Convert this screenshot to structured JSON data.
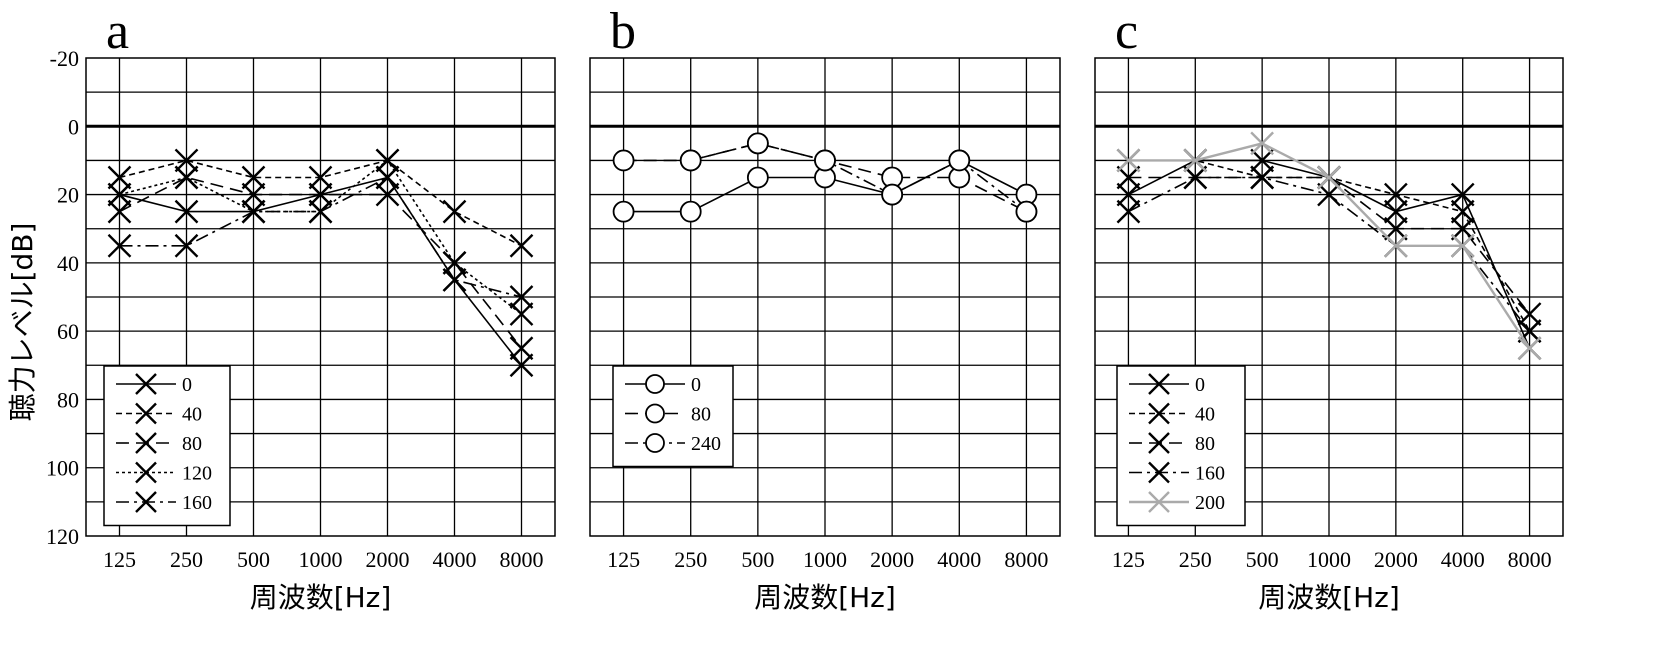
{
  "ylabel": "聴力レベル[dB]",
  "chart_data": [
    {
      "type": "line",
      "panel": "a",
      "xlabel": "周波数[Hz]",
      "ylabel": "聴力レベル[dB]",
      "categories": [
        "125",
        "250",
        "500",
        "1000",
        "2000",
        "4000",
        "8000"
      ],
      "yticks": [
        "-20",
        "0",
        "20",
        "40",
        "60",
        "80",
        "100",
        "120"
      ],
      "ylim": [
        -20,
        120
      ],
      "y_inverted": true,
      "grid": true,
      "marker": "x",
      "legend_position": "bottom-left",
      "series": [
        {
          "name": "0",
          "values": [
            20,
            25,
            25,
            20,
            15,
            45,
            70
          ],
          "dash": "solid"
        },
        {
          "name": "40",
          "values": [
            15,
            10,
            15,
            15,
            10,
            25,
            35
          ],
          "dash": "dotted"
        },
        {
          "name": "80",
          "values": [
            25,
            15,
            20,
            20,
            20,
            40,
            65
          ],
          "dash": "dashed"
        },
        {
          "name": "120",
          "values": [
            20,
            15,
            25,
            25,
            10,
            40,
            55
          ],
          "dash": "shortdot"
        },
        {
          "name": "160",
          "values": [
            35,
            35,
            25,
            25,
            15,
            45,
            50
          ],
          "dash": "dashdot"
        }
      ]
    },
    {
      "type": "line",
      "panel": "b",
      "xlabel": "周波数[Hz]",
      "categories": [
        "125",
        "250",
        "500",
        "1000",
        "2000",
        "4000",
        "8000"
      ],
      "ylim": [
        -20,
        120
      ],
      "y_inverted": true,
      "grid": true,
      "marker": "o",
      "legend_position": "bottom-left",
      "series": [
        {
          "name": "0",
          "values": [
            25,
            25,
            15,
            15,
            20,
            10,
            20
          ],
          "dash": "solid"
        },
        {
          "name": "80",
          "values": [
            10,
            10,
            5,
            10,
            15,
            15,
            25
          ],
          "dash": "dashed"
        },
        {
          "name": "240",
          "values": [
            null,
            10,
            5,
            10,
            20,
            10,
            25
          ],
          "dash": "dashdot"
        }
      ]
    },
    {
      "type": "line",
      "panel": "c",
      "xlabel": "周波数[Hz]",
      "categories": [
        "125",
        "250",
        "500",
        "1000",
        "2000",
        "4000",
        "8000"
      ],
      "ylim": [
        -20,
        120
      ],
      "y_inverted": true,
      "grid": true,
      "marker": "x",
      "legend_position": "bottom-left",
      "series": [
        {
          "name": "0",
          "values": [
            20,
            10,
            10,
            15,
            25,
            20,
            65
          ],
          "dash": "solid"
        },
        {
          "name": "40",
          "values": [
            10,
            10,
            15,
            15,
            20,
            25,
            60
          ],
          "dash": "dotted"
        },
        {
          "name": "80",
          "values": [
            15,
            15,
            15,
            15,
            30,
            30,
            55
          ],
          "dash": "dashed"
        },
        {
          "name": "160",
          "values": [
            25,
            15,
            15,
            20,
            35,
            35,
            60
          ],
          "dash": "dashdot"
        },
        {
          "name": "200",
          "values": [
            10,
            10,
            5,
            15,
            35,
            35,
            65
          ],
          "dash": "solid",
          "color": "#aaaaaa"
        }
      ]
    }
  ]
}
